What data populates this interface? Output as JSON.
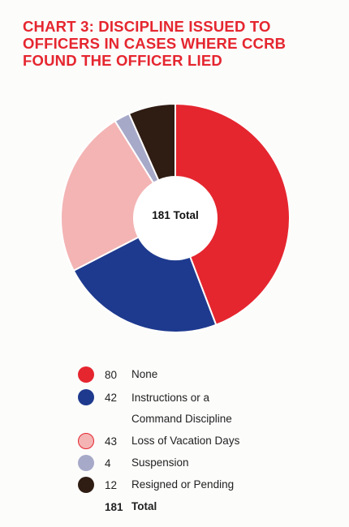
{
  "title_lines": [
    "CHART 3: DISCIPLINE ISSUED TO",
    "OFFICERS IN CASES WHERE CCRB",
    "FOUND THE OFFICER LIED"
  ],
  "chart_data": {
    "type": "pie",
    "subtype": "donut",
    "center_text": "181 Total",
    "categories": [
      "None",
      "Instructions or a Command Discipline",
      "Loss of Vacation Days",
      "Suspension",
      "Resigned or Pending"
    ],
    "values": [
      80,
      42,
      43,
      4,
      12
    ],
    "colors": [
      "#e5262f",
      "#1e3a8e",
      "#f4b4b4",
      "#a7a9c9",
      "#2f1c12"
    ],
    "total_label": "Total",
    "total_value": 181,
    "legend_placement": "bottom"
  },
  "legend": {
    "rows": [
      {
        "count": "80",
        "label": "None",
        "color": "#e5262f"
      },
      {
        "count": "42",
        "label_line1": "Instructions or a",
        "label_line2": "Command Discipline",
        "color": "#1e3a8e"
      },
      {
        "count": "43",
        "label": "Loss of Vacation Days",
        "color": "#f4b4b4"
      },
      {
        "count": "4",
        "label": "Suspension",
        "color": "#a7a9c9"
      },
      {
        "count": "12",
        "label": "Resigned or Pending",
        "color": "#2f1c12"
      }
    ],
    "total": {
      "count": "181",
      "label": "Total"
    }
  }
}
